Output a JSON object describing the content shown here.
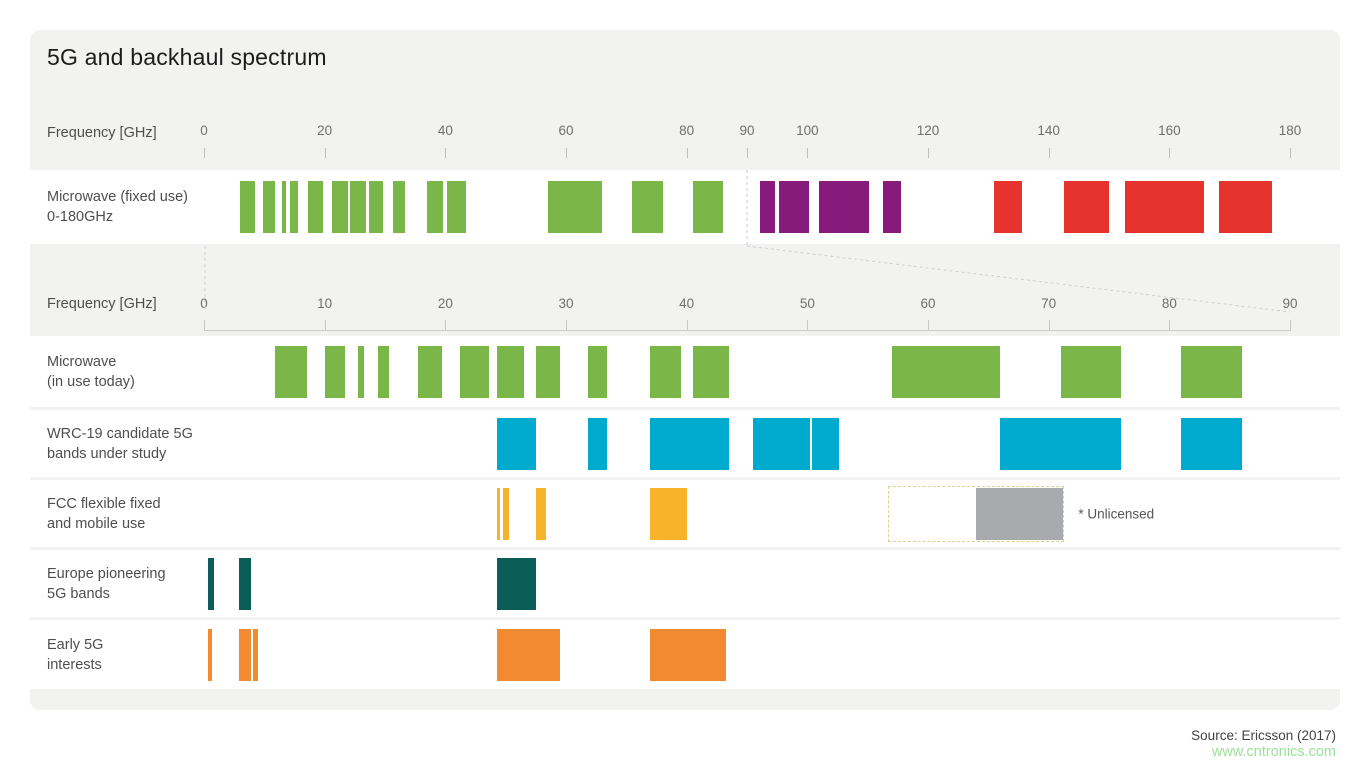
{
  "title": "5G and backhaul spectrum",
  "source": "Source: Ericsson (2017)",
  "watermark": "www.cntronics.com",
  "colors": {
    "green": "#7ab648",
    "purple": "#871b7c",
    "red": "#e6332d",
    "cyan": "#00a9ce",
    "amber": "#f8b32d",
    "teal": "#0b5d57",
    "orange": "#f18a30",
    "gray": "#a8aaad"
  },
  "chart_data": {
    "type": "bar",
    "subtype": "horizontal-frequency-interval-bands",
    "title": "5G and backhaul spectrum",
    "unit": "GHz",
    "grid": false,
    "legend": "none",
    "axes": [
      {
        "id": "full",
        "label": "Frequency [GHz]",
        "min": 0,
        "max": 180,
        "ticks": [
          0,
          20,
          40,
          60,
          80,
          90,
          100,
          120,
          140,
          160,
          180
        ]
      },
      {
        "id": "zoom",
        "label": "Frequency [GHz]",
        "min": 0,
        "max": 90,
        "ticks": [
          0,
          10,
          20,
          30,
          40,
          50,
          60,
          70,
          80,
          90
        ]
      }
    ],
    "rows": [
      {
        "axis": "full",
        "label_lines": [
          "Microwave (fixed use)",
          "0-180GHz"
        ],
        "bands": [
          {
            "from": 5.9,
            "to": 8.5,
            "color": "green"
          },
          {
            "from": 9.8,
            "to": 11.7,
            "color": "green"
          },
          {
            "from": 12.9,
            "to": 13.6,
            "color": "green"
          },
          {
            "from": 14.3,
            "to": 15.5,
            "color": "green"
          },
          {
            "from": 17.3,
            "to": 19.7,
            "color": "green"
          },
          {
            "from": 21.2,
            "to": 23.8,
            "color": "green"
          },
          {
            "from": 24.2,
            "to": 26.8,
            "color": "green"
          },
          {
            "from": 27.4,
            "to": 29.6,
            "color": "green"
          },
          {
            "from": 31.3,
            "to": 33.4,
            "color": "green"
          },
          {
            "from": 37,
            "to": 39.6,
            "color": "green"
          },
          {
            "from": 40.3,
            "to": 43.5,
            "color": "green"
          },
          {
            "from": 57,
            "to": 66,
            "color": "green"
          },
          {
            "from": 71,
            "to": 76,
            "color": "green"
          },
          {
            "from": 81,
            "to": 86,
            "color": "green"
          },
          {
            "from": 92.2,
            "to": 94.7,
            "color": "purple"
          },
          {
            "from": 95.3,
            "to": 100.3,
            "color": "purple"
          },
          {
            "from": 102,
            "to": 110.3,
            "color": "purple"
          },
          {
            "from": 112.5,
            "to": 115.5,
            "color": "purple"
          },
          {
            "from": 131,
            "to": 135.5,
            "color": "red"
          },
          {
            "from": 142.5,
            "to": 150,
            "color": "red"
          },
          {
            "from": 152.7,
            "to": 165.8,
            "color": "red"
          },
          {
            "from": 168.3,
            "to": 177,
            "color": "red"
          }
        ]
      },
      {
        "axis": "zoom",
        "label_lines": [
          "Microwave",
          "(in use today)"
        ],
        "bands": [
          {
            "from": 5.9,
            "to": 8.5,
            "color": "green"
          },
          {
            "from": 10,
            "to": 11.7,
            "color": "green"
          },
          {
            "from": 12.75,
            "to": 13.25,
            "color": "green"
          },
          {
            "from": 14.4,
            "to": 15.35,
            "color": "green"
          },
          {
            "from": 17.7,
            "to": 19.7,
            "color": "green"
          },
          {
            "from": 21.2,
            "to": 23.6,
            "color": "green"
          },
          {
            "from": 24.25,
            "to": 26.5,
            "color": "green"
          },
          {
            "from": 27.5,
            "to": 29.5,
            "color": "green"
          },
          {
            "from": 31.8,
            "to": 33.4,
            "color": "green"
          },
          {
            "from": 37,
            "to": 39.5,
            "color": "green"
          },
          {
            "from": 40.5,
            "to": 43.5,
            "color": "green"
          },
          {
            "from": 57,
            "to": 66,
            "color": "green"
          },
          {
            "from": 71,
            "to": 76,
            "color": "green"
          },
          {
            "from": 81,
            "to": 86,
            "color": "green"
          }
        ]
      },
      {
        "axis": "zoom",
        "label_lines": [
          "WRC-19 candidate 5G",
          "bands under study"
        ],
        "bands": [
          {
            "from": 24.25,
            "to": 27.5,
            "color": "cyan"
          },
          {
            "from": 31.8,
            "to": 33.4,
            "color": "cyan"
          },
          {
            "from": 37,
            "to": 43.5,
            "color": "cyan"
          },
          {
            "from": 45.5,
            "to": 50.2,
            "color": "cyan"
          },
          {
            "from": 50.4,
            "to": 52.6,
            "color": "cyan"
          },
          {
            "from": 66,
            "to": 76,
            "color": "cyan"
          },
          {
            "from": 81,
            "to": 86,
            "color": "cyan"
          }
        ]
      },
      {
        "axis": "zoom",
        "label_lines": [
          "FCC flexible fixed",
          "and mobile use"
        ],
        "bands": [
          {
            "from": 24.25,
            "to": 24.45,
            "color": "amber"
          },
          {
            "from": 24.75,
            "to": 25.25,
            "color": "amber"
          },
          {
            "from": 27.5,
            "to": 28.35,
            "color": "amber"
          },
          {
            "from": 37,
            "to": 40,
            "color": "amber"
          }
        ],
        "unlicensed": {
          "box_from": 56.7,
          "box_to": 71.3,
          "gray_from": 64,
          "gray_to": 71.2,
          "note": "* Unlicensed"
        }
      },
      {
        "axis": "zoom",
        "label_lines": [
          "Europe pioneering",
          "5G bands"
        ],
        "bands": [
          {
            "from": 0.3,
            "to": 0.8,
            "color": "teal"
          },
          {
            "from": 2.9,
            "to": 3.9,
            "color": "teal"
          },
          {
            "from": 24.25,
            "to": 27.5,
            "color": "teal"
          }
        ]
      },
      {
        "axis": "zoom",
        "label_lines": [
          "Early 5G",
          "interests"
        ],
        "bands": [
          {
            "from": 0.35,
            "to": 0.7,
            "color": "orange"
          },
          {
            "from": 2.9,
            "to": 3.9,
            "color": "orange"
          },
          {
            "from": 4.1,
            "to": 4.5,
            "color": "orange"
          },
          {
            "from": 24.25,
            "to": 29.5,
            "color": "orange"
          },
          {
            "from": 37,
            "to": 43.3,
            "color": "orange"
          }
        ]
      }
    ]
  }
}
